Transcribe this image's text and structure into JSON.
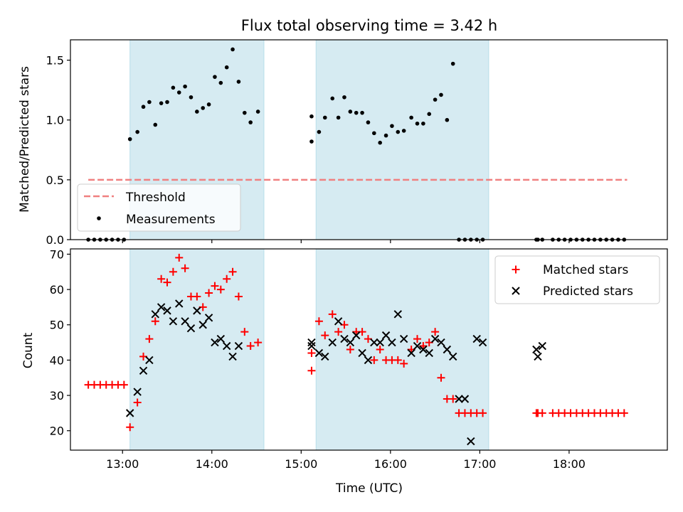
{
  "chart_data": [
    {
      "type": "scatter",
      "title": "Flux total observing time = 3.42 h",
      "ylabel": "Matched/Predicted stars",
      "xlabel": "",
      "xlim": [
        "12:25",
        "19:06"
      ],
      "ylim": [
        0,
        1.67
      ],
      "yticks": [
        0.0,
        0.5,
        1.0,
        1.5
      ],
      "ytick_labels": [
        "0.0",
        "0.5",
        "1.0",
        "1.5"
      ],
      "legend_position": "lower-left",
      "shaded_intervals": [
        [
          "13:05",
          "14:35"
        ],
        [
          "15:10",
          "17:06"
        ]
      ],
      "threshold": {
        "name": "Threshold",
        "value": 0.5,
        "x": [
          "12:37",
          "18:39"
        ],
        "color": "#f08080"
      },
      "series": [
        {
          "name": "Measurements",
          "color": "#000000",
          "x": [
            "12:37",
            "12:41",
            "12:45",
            "12:49",
            "12:53",
            "12:57",
            "13:01",
            "13:05",
            "13:10",
            "13:14",
            "13:18",
            "13:22",
            "13:26",
            "13:30",
            "13:34",
            "13:38",
            "13:42",
            "13:46",
            "13:50",
            "13:54",
            "13:58",
            "14:02",
            "14:06",
            "14:10",
            "14:14",
            "14:18",
            "14:22",
            "14:26",
            "14:31",
            "15:07",
            "15:07",
            "15:12",
            "15:16",
            "15:21",
            "15:25",
            "15:29",
            "15:33",
            "15:37",
            "15:41",
            "15:45",
            "15:49",
            "15:53",
            "15:57",
            "16:01",
            "16:05",
            "16:09",
            "16:14",
            "16:18",
            "16:22",
            "16:26",
            "16:30",
            "16:34",
            "16:38",
            "16:42",
            "16:46",
            "16:50",
            "16:54",
            "16:58",
            "17:02",
            "17:38",
            "17:39",
            "17:42",
            "17:49",
            "17:53",
            "17:57",
            "18:01",
            "18:05",
            "18:09",
            "18:13",
            "18:17",
            "18:21",
            "18:25",
            "18:29",
            "18:33",
            "18:37"
          ],
          "y": [
            0,
            0,
            0,
            0,
            0,
            0,
            0,
            0.84,
            0.9,
            1.11,
            1.15,
            0.96,
            1.14,
            1.15,
            1.27,
            1.23,
            1.28,
            1.19,
            1.07,
            1.1,
            1.13,
            1.36,
            1.31,
            1.44,
            1.59,
            1.32,
            1.06,
            0.98,
            1.07,
            1.03,
            0.82,
            0.9,
            1.02,
            1.18,
            1.02,
            1.19,
            1.07,
            1.06,
            1.06,
            0.98,
            0.89,
            0.81,
            0.87,
            0.95,
            0.9,
            0.91,
            1.02,
            0.97,
            0.97,
            1.05,
            1.17,
            1.21,
            1.0,
            1.47,
            0,
            0,
            0,
            0,
            0,
            0,
            0,
            0,
            0,
            0,
            0,
            0,
            0,
            0,
            0,
            0,
            0,
            0,
            0,
            0,
            0
          ]
        }
      ]
    },
    {
      "type": "scatter",
      "title": "",
      "ylabel": "Count",
      "xlabel": "Time (UTC)",
      "xlim": [
        "12:25",
        "19:06"
      ],
      "ylim": [
        14.5,
        71.5
      ],
      "yticks": [
        20,
        30,
        40,
        50,
        60,
        70
      ],
      "ytick_labels": [
        "20",
        "30",
        "40",
        "50",
        "60",
        "70"
      ],
      "xticks": [
        "13:00",
        "14:00",
        "15:00",
        "16:00",
        "17:00",
        "18:00"
      ],
      "xtick_labels": [
        "13:00",
        "14:00",
        "15:00",
        "16:00",
        "17:00",
        "18:00"
      ],
      "legend_position": "upper-right",
      "shaded_intervals": [
        [
          "13:05",
          "14:35"
        ],
        [
          "15:10",
          "17:06"
        ]
      ],
      "series": [
        {
          "name": "Matched stars",
          "marker": "plus",
          "color": "#ff0000",
          "x": [
            "12:37",
            "12:41",
            "12:45",
            "12:49",
            "12:53",
            "12:57",
            "13:01",
            "13:05",
            "13:10",
            "13:14",
            "13:18",
            "13:22",
            "13:26",
            "13:30",
            "13:34",
            "13:38",
            "13:42",
            "13:46",
            "13:50",
            "13:54",
            "13:58",
            "14:02",
            "14:06",
            "14:10",
            "14:14",
            "14:18",
            "14:22",
            "14:26",
            "14:31",
            "15:07",
            "15:07",
            "15:12",
            "15:16",
            "15:21",
            "15:25",
            "15:29",
            "15:33",
            "15:37",
            "15:41",
            "15:45",
            "15:49",
            "15:53",
            "15:57",
            "16:01",
            "16:05",
            "16:09",
            "16:14",
            "16:18",
            "16:22",
            "16:26",
            "16:30",
            "16:34",
            "16:38",
            "16:42",
            "16:46",
            "16:50",
            "16:54",
            "16:58",
            "17:02",
            "17:38",
            "17:39",
            "17:42",
            "17:49",
            "17:53",
            "17:57",
            "18:01",
            "18:05",
            "18:09",
            "18:13",
            "18:17",
            "18:21",
            "18:25",
            "18:29",
            "18:33",
            "18:37"
          ],
          "y": [
            33,
            33,
            33,
            33,
            33,
            33,
            33,
            21,
            28,
            41,
            46,
            51,
            63,
            62,
            65,
            69,
            66,
            58,
            58,
            55,
            59,
            61,
            60,
            63,
            65,
            58,
            48,
            44,
            45,
            42,
            37,
            51,
            47,
            53,
            48,
            50,
            43,
            48,
            48,
            46,
            40,
            43,
            40,
            40,
            40,
            39,
            43,
            46,
            44,
            45,
            48,
            35,
            29,
            29,
            25,
            25,
            25,
            25,
            25,
            25,
            25,
            25,
            25,
            25,
            25,
            25,
            25,
            25,
            25,
            25,
            25,
            25,
            25,
            25,
            25
          ]
        },
        {
          "name": "Predicted stars",
          "marker": "x",
          "color": "#000000",
          "x": [
            "13:05",
            "13:10",
            "13:14",
            "13:18",
            "13:22",
            "13:26",
            "13:30",
            "13:34",
            "13:38",
            "13:42",
            "13:46",
            "13:50",
            "13:54",
            "13:58",
            "14:02",
            "14:06",
            "14:10",
            "14:14",
            "14:18",
            "15:07",
            "15:07",
            "15:12",
            "15:16",
            "15:21",
            "15:25",
            "15:29",
            "15:33",
            "15:37",
            "15:41",
            "15:45",
            "15:49",
            "15:53",
            "15:57",
            "16:01",
            "16:05",
            "16:09",
            "16:14",
            "16:18",
            "16:22",
            "16:26",
            "16:30",
            "16:34",
            "16:38",
            "16:42",
            "16:46",
            "16:50",
            "16:54",
            "16:58",
            "17:02",
            "17:38",
            "17:39",
            "17:42"
          ],
          "y": [
            25,
            31,
            37,
            40,
            53,
            55,
            54,
            51,
            56,
            51,
            49,
            54,
            50,
            52,
            45,
            46,
            44,
            41,
            44,
            45,
            44,
            42,
            41,
            45,
            51,
            46,
            45,
            47,
            42,
            40,
            45,
            45,
            47,
            45,
            53,
            46,
            42,
            44,
            43,
            42,
            46,
            45,
            43,
            41,
            29,
            29,
            17,
            46,
            45,
            43,
            41,
            44
          ]
        }
      ]
    }
  ]
}
